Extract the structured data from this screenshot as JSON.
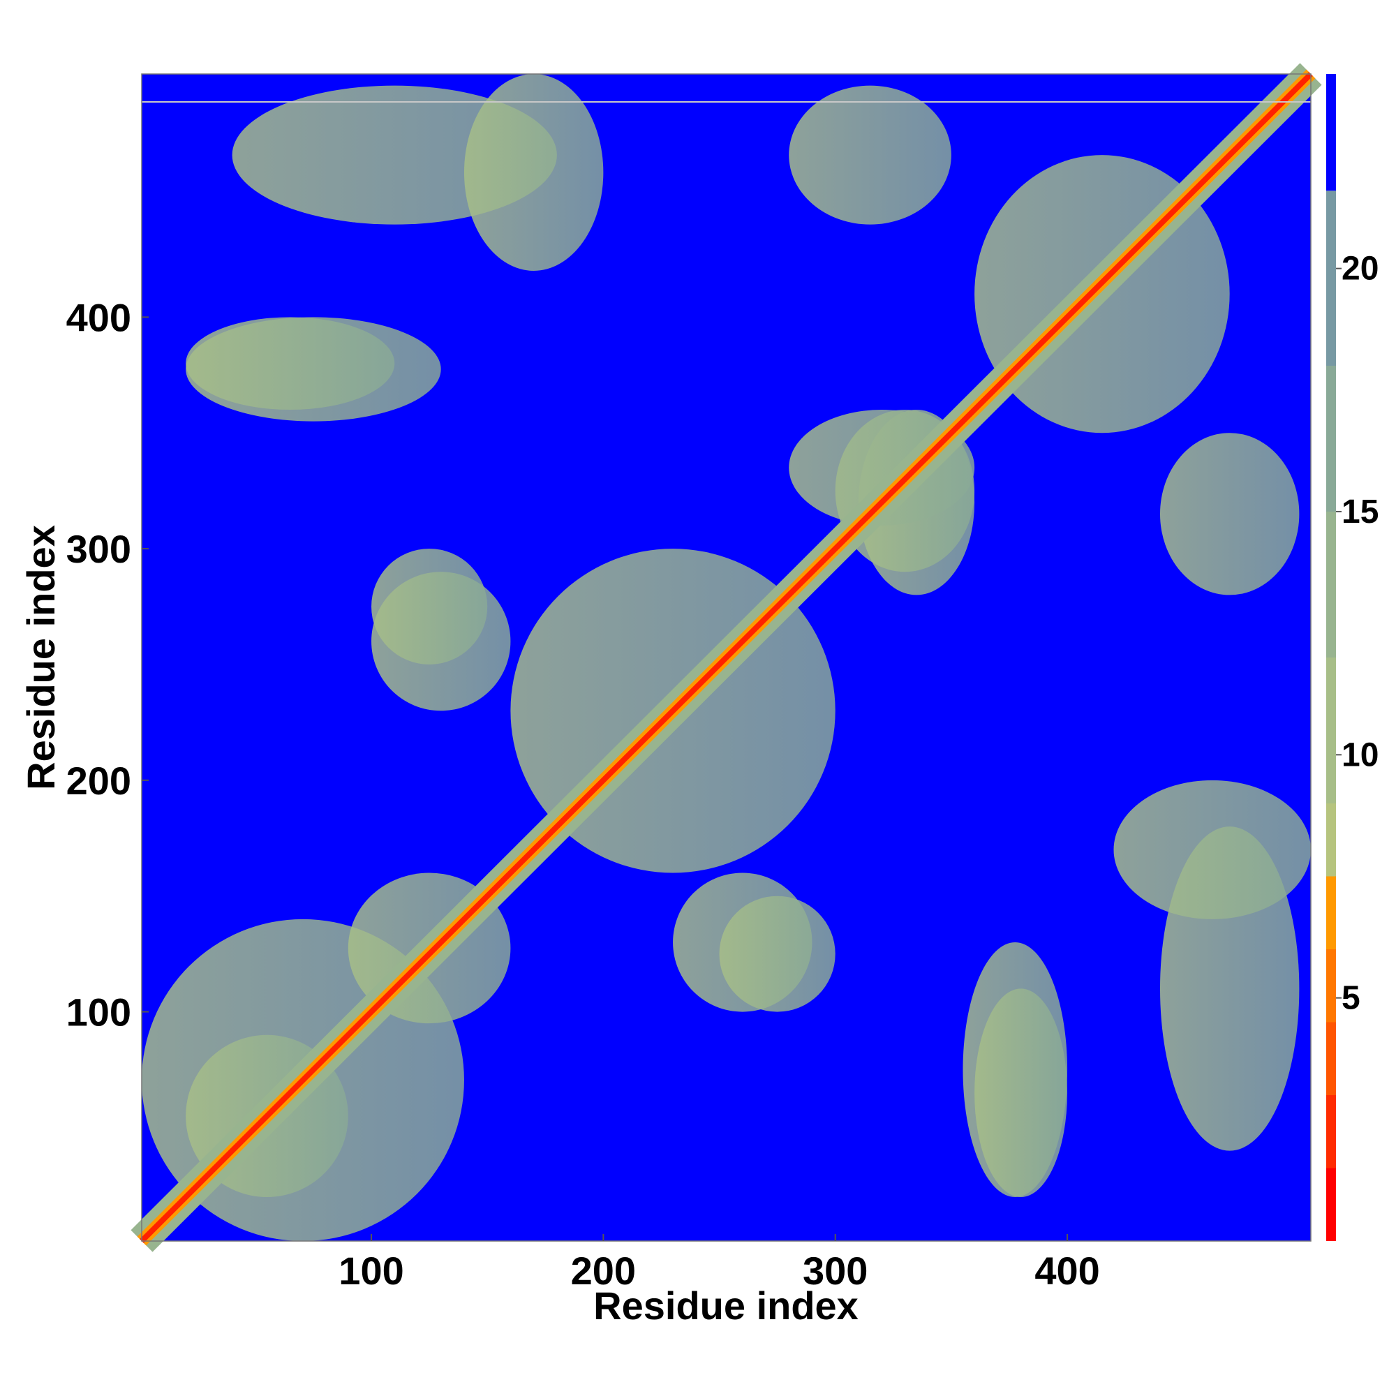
{
  "chart_data": {
    "type": "heatmap",
    "title": "",
    "xlabel": "Residue index",
    "ylabel": "Residue index",
    "xlim": [
      1,
      505
    ],
    "ylim": [
      1,
      505
    ],
    "x_ticks": [
      100,
      200,
      300,
      400
    ],
    "y_ticks": [
      100,
      200,
      300,
      400
    ],
    "colorbar": {
      "range": [
        0,
        24
      ],
      "ticks": [
        5,
        10,
        15,
        20
      ],
      "levels": [
        {
          "from": 0,
          "to": 1.5,
          "color": "#ff0000"
        },
        {
          "from": 1.5,
          "to": 3,
          "color": "#ff2b00"
        },
        {
          "from": 3,
          "to": 4.5,
          "color": "#ff5500"
        },
        {
          "from": 4.5,
          "to": 6,
          "color": "#ff7700"
        },
        {
          "from": 6,
          "to": 7.5,
          "color": "#ff9900"
        },
        {
          "from": 7.5,
          "to": 9,
          "color": "#b6c47e"
        },
        {
          "from": 9,
          "to": 12,
          "color": "#a7be88"
        },
        {
          "from": 12,
          "to": 15,
          "color": "#98b48f"
        },
        {
          "from": 15,
          "to": 18,
          "color": "#89a997"
        },
        {
          "from": 18,
          "to": 21.6,
          "color": "#7799a3"
        },
        {
          "from": 21.6,
          "to": 24,
          "color": "#0000ff"
        }
      ]
    },
    "background_color": "#0000ff",
    "diagonal_color": "#ff2200",
    "contact_regions": [
      {
        "x": [
          1,
          140
        ],
        "y": [
          1,
          140
        ],
        "kind": "diagonal-block"
      },
      {
        "x": [
          20,
          90
        ],
        "y": [
          20,
          90
        ],
        "kind": "block"
      },
      {
        "x": [
          90,
          160
        ],
        "y": [
          95,
          160
        ],
        "kind": "block"
      },
      {
        "x": [
          160,
          300
        ],
        "y": [
          160,
          300
        ],
        "kind": "block"
      },
      {
        "x": [
          300,
          360
        ],
        "y": [
          290,
          360
        ],
        "kind": "block"
      },
      {
        "x": [
          360,
          470
        ],
        "y": [
          350,
          470
        ],
        "kind": "block"
      },
      {
        "x": [
          20,
          130
        ],
        "y": [
          355,
          400
        ],
        "kind": "symmetric-pair"
      },
      {
        "x": [
          100,
          160
        ],
        "y": [
          230,
          290
        ],
        "kind": "symmetric-pair"
      },
      {
        "x": [
          310,
          360
        ],
        "y": [
          280,
          360
        ],
        "kind": "symmetric-pair"
      },
      {
        "x": [
          360,
          400
        ],
        "y": [
          20,
          110
        ],
        "kind": "symmetric-pair"
      },
      {
        "x": [
          440,
          500
        ],
        "y": [
          40,
          180
        ],
        "kind": "symmetric-pair"
      },
      {
        "x": [
          250,
          300
        ],
        "y": [
          100,
          150
        ],
        "kind": "symmetric-pair"
      },
      {
        "x": [
          440,
          500
        ],
        "y": [
          280,
          350
        ],
        "kind": "symmetric-pair"
      },
      {
        "x": [
          140,
          200
        ],
        "y": [
          420,
          505
        ],
        "kind": "symmetric-pair"
      }
    ]
  }
}
